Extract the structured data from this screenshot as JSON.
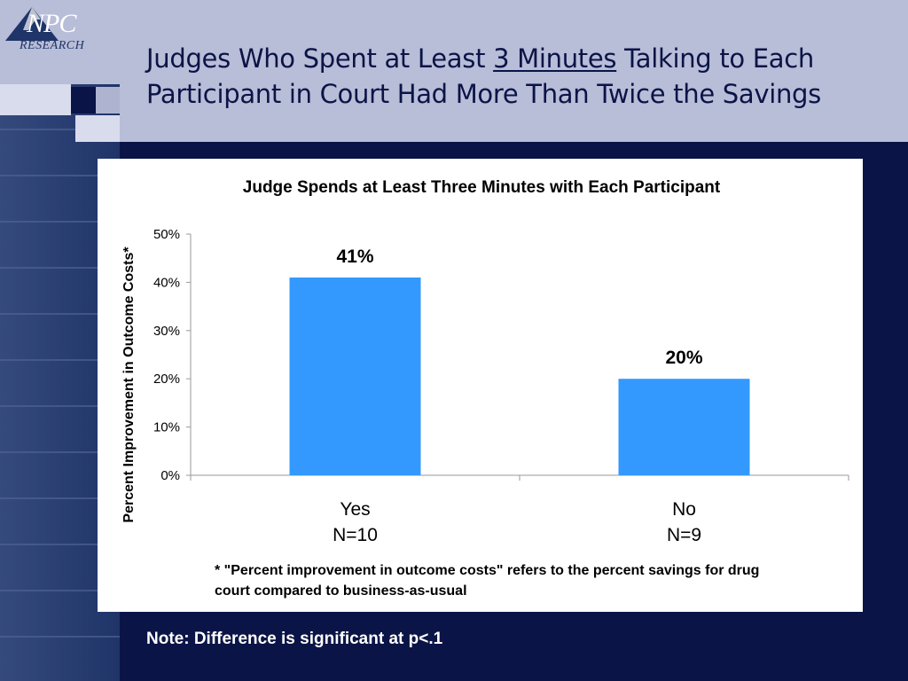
{
  "slide": {
    "title_part1": "Judges Who Spent at Least ",
    "title_underlined": "3 Minutes",
    "title_part2": " Talking to Each Participant in Court Had More Than Twice the Savings",
    "note": "Note: Difference is significant at p<.1",
    "logo_top": "NPC",
    "logo_bottom": "RESEARCH"
  },
  "chart_data": {
    "type": "bar",
    "title": "Judge Spends at Least Three Minutes with Each Participant",
    "ylabel": "Percent Improvement in Outcome Costs*",
    "xlabel": "",
    "categories": [
      "Yes",
      "No"
    ],
    "category_sublabels": [
      "N=10",
      "N=9"
    ],
    "values": [
      41,
      20
    ],
    "value_labels": [
      "41%",
      "20%"
    ],
    "ylim": [
      0,
      50
    ],
    "yticks": [
      0,
      10,
      20,
      30,
      40,
      50
    ],
    "ytick_labels": [
      "0%",
      "10%",
      "20%",
      "30%",
      "40%",
      "50%"
    ],
    "bar_color": "#3399ff",
    "grid": false,
    "footnote": "* \"Percent improvement in outcome costs\" refers to the percent savings for drug court compared to business-as-usual"
  }
}
